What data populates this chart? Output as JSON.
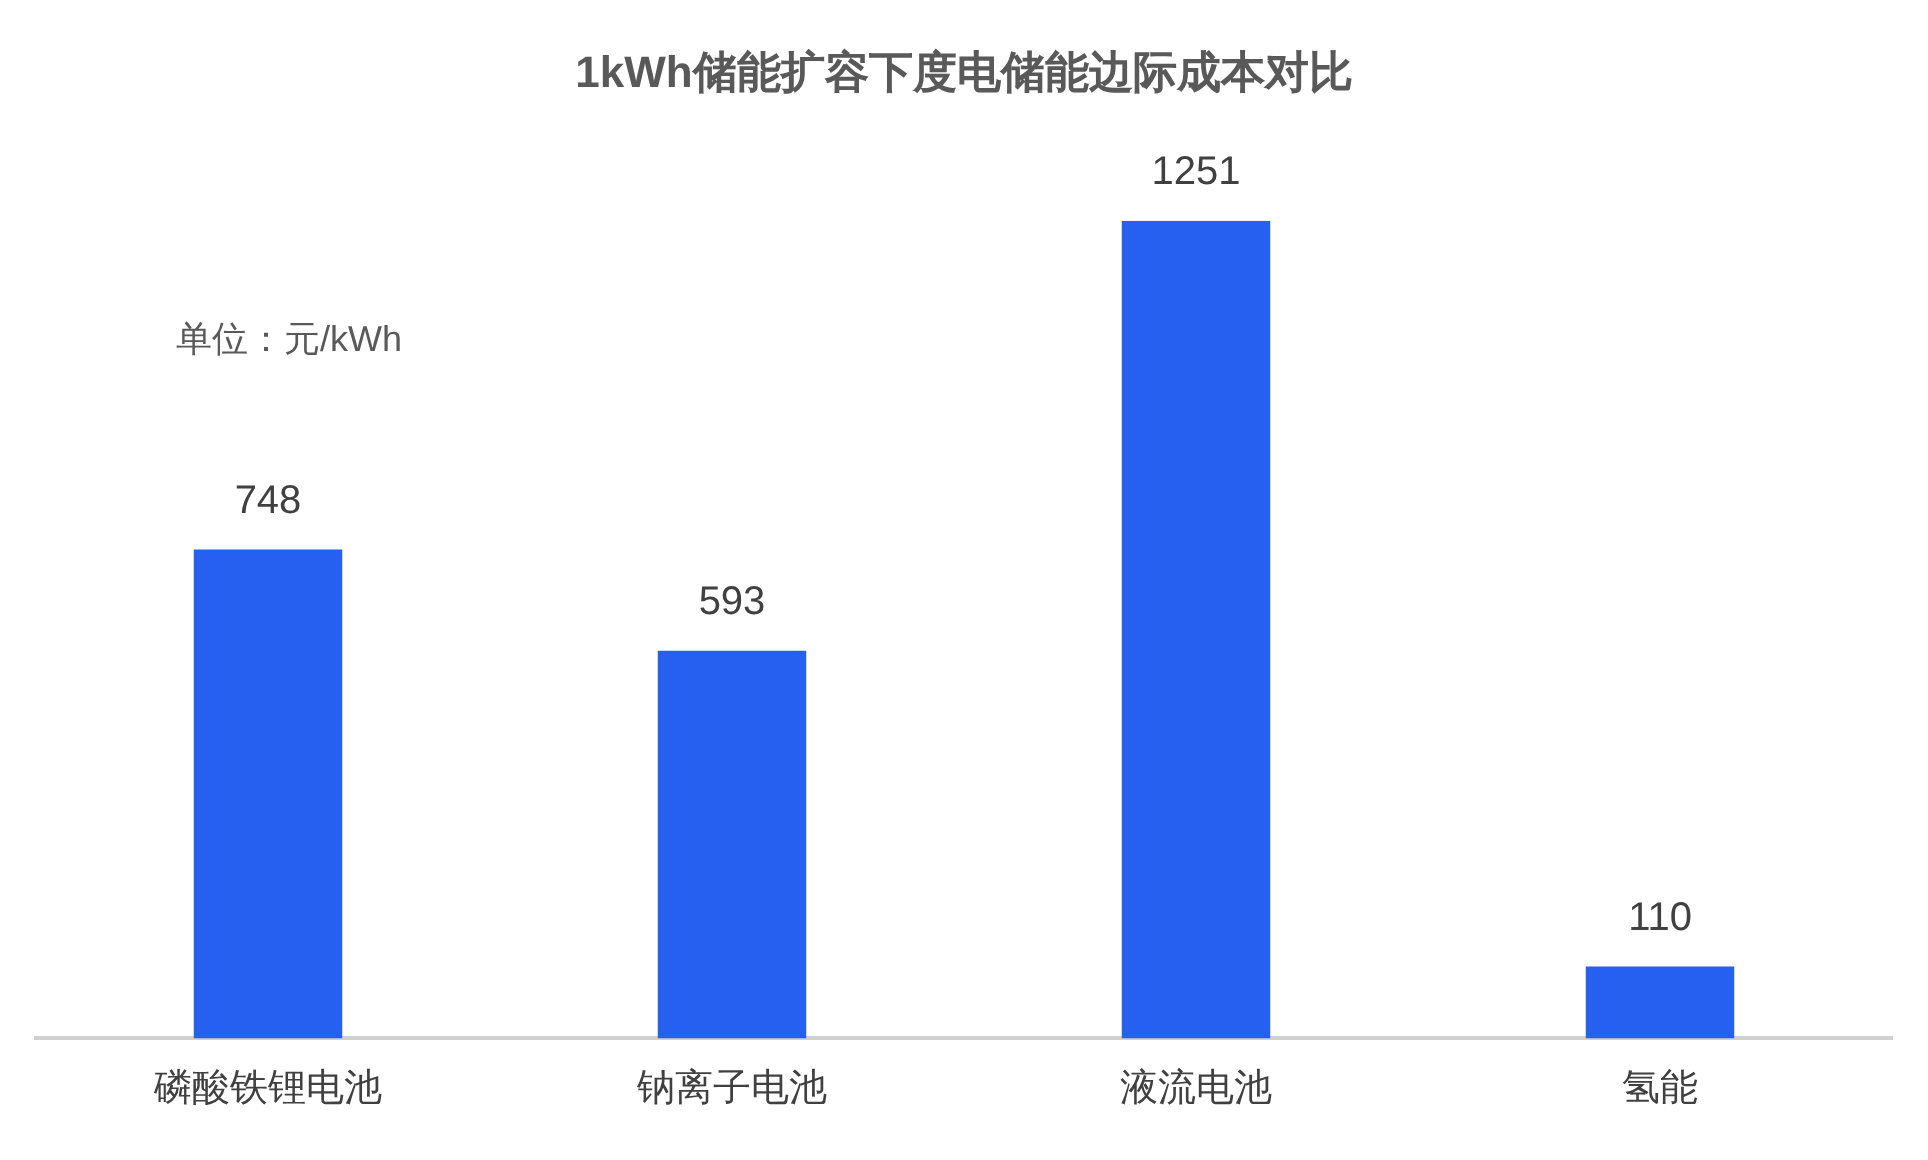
{
  "chart_data": {
    "type": "bar",
    "title": "1kWh储能扩容下度电储能边际成本对比",
    "categories": [
      "磷酸铁锂电池",
      "钠离子电池",
      "液流电池",
      "氢能"
    ],
    "values": [
      748,
      593,
      1251,
      110
    ],
    "color": "#2560f0",
    "data_labels": true,
    "grid": false,
    "legend": false,
    "tick_labels": "x",
    "annotations": [
      "单位：元/kWh"
    ]
  }
}
